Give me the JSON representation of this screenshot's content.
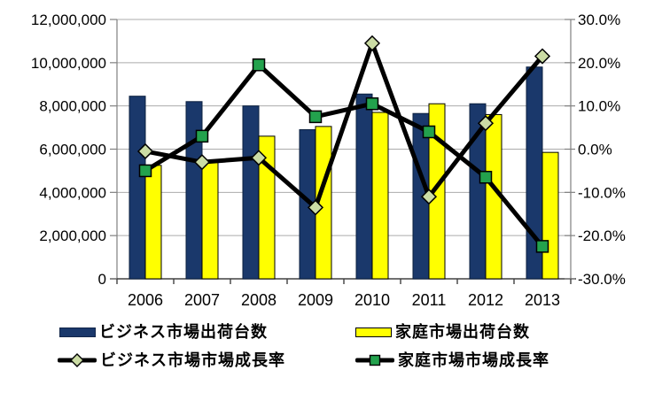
{
  "chart_data": {
    "type": "combo-bar-line",
    "title": "",
    "categories": [
      "2006",
      "2007",
      "2008",
      "2009",
      "2010",
      "2011",
      "2012",
      "2013"
    ],
    "bar_series": [
      {
        "name": "ビジネス市場出荷台数",
        "axis": "left",
        "color": "#1A386B",
        "border_color": "#0B1F3F",
        "values": [
          8450000,
          8200000,
          8000000,
          6900000,
          8550000,
          7650000,
          8100000,
          9800000
        ]
      },
      {
        "name": "家庭市場出荷台数",
        "axis": "left",
        "color": "#FFFF00",
        "border_color": "#000000",
        "values": [
          5250000,
          5400000,
          6600000,
          7050000,
          7700000,
          8100000,
          7600000,
          5850000
        ]
      }
    ],
    "line_series": [
      {
        "name": "ビジネス市場市場成長率",
        "axis": "right",
        "color": "#000000",
        "marker": "diamond",
        "marker_color": "#CBDCA4",
        "values": [
          -0.5,
          -3.0,
          -2.0,
          -13.5,
          24.5,
          -11.0,
          6.0,
          21.5
        ]
      },
      {
        "name": "家庭市場市場成長率",
        "axis": "right",
        "color": "#000000",
        "marker": "square",
        "marker_color": "#23A24D",
        "values": [
          -5.0,
          3.0,
          19.5,
          7.5,
          10.5,
          4.0,
          -6.5,
          -22.5
        ]
      }
    ],
    "left_axis": {
      "min": 0,
      "max": 12000000,
      "step": 2000000,
      "labels": [
        "12,000,000",
        "10,000,000",
        "8,000,000",
        "6,000,000",
        "4,000,000",
        "2,000,000",
        "0"
      ]
    },
    "right_axis": {
      "min": -30,
      "max": 30,
      "step": 10,
      "labels": [
        "30.0%",
        "20.0%",
        "10.0%",
        "0.0%",
        "-10.0%",
        "-20.0%",
        "-30.0%"
      ]
    },
    "grid": true,
    "legend_position": "bottom"
  },
  "colors": {
    "background": "#FFFFFF",
    "gridline": "#ABABAB",
    "axis_line": "#808080",
    "bottom_axis_line": "#404040",
    "text": "#000000"
  }
}
